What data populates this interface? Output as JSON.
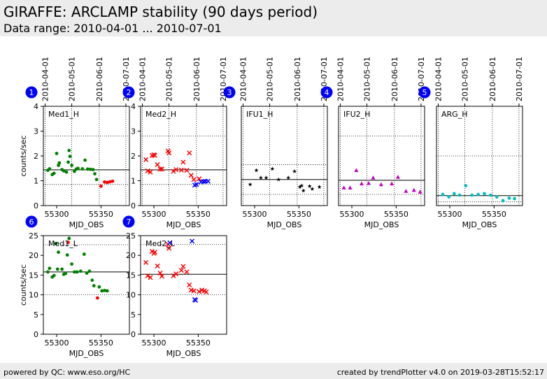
{
  "header": {
    "title": "GIRAFFE: ARCLAMP stability (90 days period)",
    "subtitle": "Data range: 2010-04-01 ... 2010-07-01"
  },
  "footer": {
    "left": "powered by QC: www.eso.org/HC",
    "right": "created by trendPlotter v4.0 on 2019-03-28T15:52:17"
  },
  "chart_data": [
    {
      "type": "scatter",
      "panel": "1",
      "label": "Med1_H",
      "marker": "circle",
      "xlabel": "MJD_OBS",
      "ylabel": "counts/sec",
      "xlim": [
        55285,
        55382
      ],
      "ylim": [
        0,
        4
      ],
      "yticks": [
        0,
        1,
        2,
        3,
        4
      ],
      "xticks": [
        55300,
        55350
      ],
      "date_ticks": [
        {
          "label": "2010-04-01",
          "x": 55287
        },
        {
          "label": "2010-05-01",
          "x": 55317
        },
        {
          "label": "2010-06-01",
          "x": 55348
        },
        {
          "label": "2010-07-01",
          "x": 55378
        }
      ],
      "reference_lines": [
        {
          "y": 1.44,
          "style": "solid"
        },
        {
          "y": 2.8,
          "style": "dotted"
        },
        {
          "y": 0.85,
          "style": "dotted"
        }
      ],
      "series": [
        {
          "color": "#008000",
          "points": [
            [
              55290,
              1.42
            ],
            [
              55292,
              1.48
            ],
            [
              55295,
              1.25
            ],
            [
              55297,
              1.3
            ],
            [
              55300,
              2.1
            ],
            [
              55302,
              1.62
            ],
            [
              55303,
              1.72
            ],
            [
              55306,
              1.45
            ],
            [
              55308,
              1.4
            ],
            [
              55311,
              1.35
            ],
            [
              55313,
              1.75
            ],
            [
              55314,
              2.22
            ],
            [
              55315,
              1.98
            ],
            [
              55317,
              1.62
            ],
            [
              55320,
              1.38
            ],
            [
              55322,
              1.47
            ],
            [
              55324,
              1.5
            ],
            [
              55329,
              1.48
            ],
            [
              55332,
              1.83
            ],
            [
              55335,
              1.47
            ],
            [
              55338,
              1.46
            ],
            [
              55341,
              1.45
            ],
            [
              55343,
              1.28
            ],
            [
              55345,
              1.05
            ]
          ]
        },
        {
          "color": "#ff0000",
          "points": [
            [
              55350,
              0.78
            ],
            [
              55354,
              0.95
            ],
            [
              55357,
              0.93
            ],
            [
              55360,
              0.96
            ],
            [
              55363,
              0.98
            ]
          ]
        }
      ]
    },
    {
      "type": "scatter",
      "panel": "2",
      "label": "Med2_H",
      "marker": "x",
      "xlabel": "MJD_OBS",
      "ylabel": "",
      "xlim": [
        55285,
        55382
      ],
      "ylim": [
        0,
        4
      ],
      "yticks": [
        0,
        1,
        2,
        3,
        4
      ],
      "xticks": [
        55300,
        55350
      ],
      "date_ticks": [
        {
          "label": "2010-04-01",
          "x": 55287
        },
        {
          "label": "2010-05-01",
          "x": 55317
        },
        {
          "label": "2010-06-01",
          "x": 55348
        },
        {
          "label": "2010-07-01",
          "x": 55378
        }
      ],
      "reference_lines": [
        {
          "y": 1.44,
          "style": "solid"
        },
        {
          "y": 2.8,
          "style": "dotted"
        },
        {
          "y": 0.85,
          "style": "dotted"
        }
      ],
      "series": [
        {
          "color": "#ff0000",
          "points": [
            [
              55291,
              1.85
            ],
            [
              55293,
              1.4
            ],
            [
              55296,
              1.35
            ],
            [
              55298,
              2.02
            ],
            [
              55300,
              2.05
            ],
            [
              55301,
              2.02
            ],
            [
              55304,
              1.65
            ],
            [
              55307,
              1.47
            ],
            [
              55309,
              1.47
            ],
            [
              55316,
              2.2
            ],
            [
              55317,
              2.12
            ],
            [
              55322,
              1.38
            ],
            [
              55325,
              1.45
            ],
            [
              55331,
              1.43
            ],
            [
              55333,
              1.75
            ],
            [
              55337,
              1.42
            ],
            [
              55340,
              2.12
            ],
            [
              55342,
              1.22
            ],
            [
              55345,
              1.05
            ],
            [
              55351,
              1.08
            ]
          ]
        },
        {
          "color": "#0000ff",
          "points": [
            [
              55346,
              0.82
            ],
            [
              55348,
              0.85
            ],
            [
              55353,
              0.95
            ],
            [
              55356,
              0.97
            ],
            [
              55358,
              0.98
            ],
            [
              55361,
              0.98
            ]
          ]
        }
      ]
    },
    {
      "type": "scatter",
      "panel": "3",
      "label": "IFU1_H",
      "marker": "star",
      "xlabel": "MJD_OBS",
      "ylabel": "",
      "xlim": [
        55285,
        55382
      ],
      "ylim": [
        0,
        4
      ],
      "yticks": [],
      "xticks": [
        55300,
        55350
      ],
      "date_ticks": [
        {
          "label": "2010-04-01",
          "x": 55287
        },
        {
          "label": "2010-05-01",
          "x": 55317
        },
        {
          "label": "2010-06-01",
          "x": 55348
        },
        {
          "label": "2010-07-01",
          "x": 55378
        }
      ],
      "reference_lines": [
        {
          "y": 1.05,
          "style": "solid"
        },
        {
          "y": 1.65,
          "style": "dotted"
        },
        {
          "y": 0.45,
          "style": "dotted"
        }
      ],
      "series": [
        {
          "color": "#000000",
          "points": [
            [
              55295,
              0.85
            ],
            [
              55302,
              1.42
            ],
            [
              55307,
              1.12
            ],
            [
              55313,
              1.12
            ],
            [
              55320,
              1.48
            ],
            [
              55327,
              1.05
            ],
            [
              55338,
              1.12
            ],
            [
              55345,
              1.38
            ],
            [
              55351,
              0.75
            ],
            [
              55353,
              0.8
            ],
            [
              55355,
              0.6
            ],
            [
              55362,
              0.78
            ],
            [
              55365,
              0.67
            ],
            [
              55373,
              0.75
            ]
          ]
        }
      ]
    },
    {
      "type": "scatter",
      "panel": "4",
      "label": "IFU2_H",
      "marker": "triangle",
      "xlabel": "MJD_OBS",
      "ylabel": "",
      "xlim": [
        55285,
        55382
      ],
      "ylim": [
        0,
        4
      ],
      "yticks": [],
      "xticks": [
        55300,
        55350
      ],
      "date_ticks": [
        {
          "label": "2010-04-01",
          "x": 55287
        },
        {
          "label": "2010-05-01",
          "x": 55317
        },
        {
          "label": "2010-06-01",
          "x": 55348
        },
        {
          "label": "2010-07-01",
          "x": 55378
        }
      ],
      "reference_lines": [
        {
          "y": 1.02,
          "style": "solid"
        },
        {
          "y": 2.8,
          "style": "dotted"
        },
        {
          "y": 0.45,
          "style": "dotted"
        }
      ],
      "series": [
        {
          "color": "#c000c0",
          "points": [
            [
              55291,
              0.72
            ],
            [
              55298,
              0.72
            ],
            [
              55305,
              1.42
            ],
            [
              55311,
              0.88
            ],
            [
              55319,
              0.9
            ],
            [
              55324,
              1.12
            ],
            [
              55333,
              0.85
            ],
            [
              55345,
              0.88
            ],
            [
              55352,
              1.15
            ],
            [
              55361,
              0.58
            ],
            [
              55370,
              0.62
            ],
            [
              55377,
              0.55
            ]
          ]
        }
      ]
    },
    {
      "type": "scatter",
      "panel": "5",
      "label": "ARG_H",
      "marker": "circle",
      "xlabel": "MJD_OBS",
      "ylabel": "",
      "xlim": [
        55285,
        55382
      ],
      "ylim": [
        0,
        4
      ],
      "yticks": [],
      "xticks": [
        55300,
        55350
      ],
      "date_ticks": [
        {
          "label": "2010-04-01",
          "x": 55287
        },
        {
          "label": "2010-05-01",
          "x": 55317
        },
        {
          "label": "2010-06-01",
          "x": 55348
        },
        {
          "label": "2010-07-01",
          "x": 55378
        }
      ],
      "reference_lines": [
        {
          "y": 0.4,
          "style": "solid"
        },
        {
          "y": 2.0,
          "style": "dotted"
        },
        {
          "y": 0.15,
          "style": "dotted"
        }
      ],
      "series": [
        {
          "color": "#00bfbf",
          "points": [
            [
              55292,
              0.45
            ],
            [
              55299,
              0.35
            ],
            [
              55305,
              0.48
            ],
            [
              55311,
              0.42
            ],
            [
              55318,
              0.8
            ],
            [
              55325,
              0.42
            ],
            [
              55332,
              0.45
            ],
            [
              55339,
              0.48
            ],
            [
              55346,
              0.42
            ],
            [
              55353,
              0.35
            ],
            [
              55360,
              0.2
            ],
            [
              55367,
              0.3
            ],
            [
              55373,
              0.28
            ]
          ]
        }
      ]
    },
    {
      "type": "scatter",
      "panel": "6",
      "label": "Med1_L",
      "marker": "circle",
      "xlabel": "MJD_OBS",
      "ylabel": "counts/sec",
      "xlim": [
        55285,
        55382
      ],
      "ylim": [
        0,
        25
      ],
      "yticks": [
        0,
        5,
        10,
        15,
        20,
        25
      ],
      "xticks": [
        55300,
        55350
      ],
      "date_ticks": [],
      "reference_lines": [
        {
          "y": 15.8,
          "style": "solid"
        },
        {
          "y": 22.7,
          "style": "dotted"
        },
        {
          "y": 10.0,
          "style": "dotted"
        }
      ],
      "series": [
        {
          "color": "#008000",
          "points": [
            [
              55290,
              15.8
            ],
            [
              55292,
              16.7
            ],
            [
              55295,
              14.5
            ],
            [
              55297,
              14.9
            ],
            [
              55299,
              23.0
            ],
            [
              55301,
              16.5
            ],
            [
              55302,
              20.8
            ],
            [
              55306,
              16.5
            ],
            [
              55308,
              15.2
            ],
            [
              55310,
              15.4
            ],
            [
              55312,
              20.1
            ],
            [
              55314,
              24.3
            ],
            [
              55317,
              17.8
            ],
            [
              55320,
              15.8
            ],
            [
              55323,
              15.8
            ],
            [
              55327,
              16.0
            ],
            [
              55331,
              20.3
            ],
            [
              55334,
              15.5
            ],
            [
              55337,
              16.0
            ],
            [
              55340,
              13.7
            ],
            [
              55342,
              12.3
            ],
            [
              55348,
              12.0
            ],
            [
              55351,
              11.0
            ],
            [
              55354,
              11.1
            ],
            [
              55357,
              11.0
            ]
          ]
        },
        {
          "color": "#ff0000",
          "points": [
            [
              55313,
              23.3
            ],
            [
              55346,
              9.2
            ]
          ]
        }
      ]
    },
    {
      "type": "scatter",
      "panel": "7",
      "label": "Med2_L",
      "marker": "x",
      "xlabel": "MJD_OBS",
      "ylabel": "",
      "xlim": [
        55285,
        55382
      ],
      "ylim": [
        0,
        25
      ],
      "yticks": [
        0,
        5,
        10,
        15,
        20,
        25
      ],
      "xticks": [
        55300,
        55350
      ],
      "date_ticks": [],
      "reference_lines": [
        {
          "y": 15.2,
          "style": "solid"
        },
        {
          "y": 22.8,
          "style": "dotted"
        },
        {
          "y": 10.0,
          "style": "dotted"
        }
      ],
      "series": [
        {
          "color": "#ff0000",
          "points": [
            [
              55291,
              18.2
            ],
            [
              55293,
              14.8
            ],
            [
              55296,
              14.4
            ],
            [
              55298,
              21.0
            ],
            [
              55300,
              20.5
            ],
            [
              55301,
              20.8
            ],
            [
              55304,
              17.3
            ],
            [
              55307,
              15.5
            ],
            [
              55309,
              14.7
            ],
            [
              55316,
              22.8
            ],
            [
              55317,
              21.8
            ],
            [
              55322,
              14.8
            ],
            [
              55325,
              15.3
            ],
            [
              55331,
              16.2
            ],
            [
              55333,
              17.2
            ],
            [
              55337,
              15.8
            ],
            [
              55340,
              12.5
            ],
            [
              55342,
              11.2
            ],
            [
              55345,
              11.0
            ],
            [
              55351,
              10.8
            ],
            [
              55354,
              11.2
            ],
            [
              55357,
              11.0
            ],
            [
              55359,
              10.7
            ]
          ]
        },
        {
          "color": "#0000ff",
          "points": [
            [
              55318,
              23.2
            ],
            [
              55343,
              23.6
            ],
            [
              55346,
              8.8
            ],
            [
              55347,
              8.6
            ]
          ]
        }
      ]
    }
  ]
}
